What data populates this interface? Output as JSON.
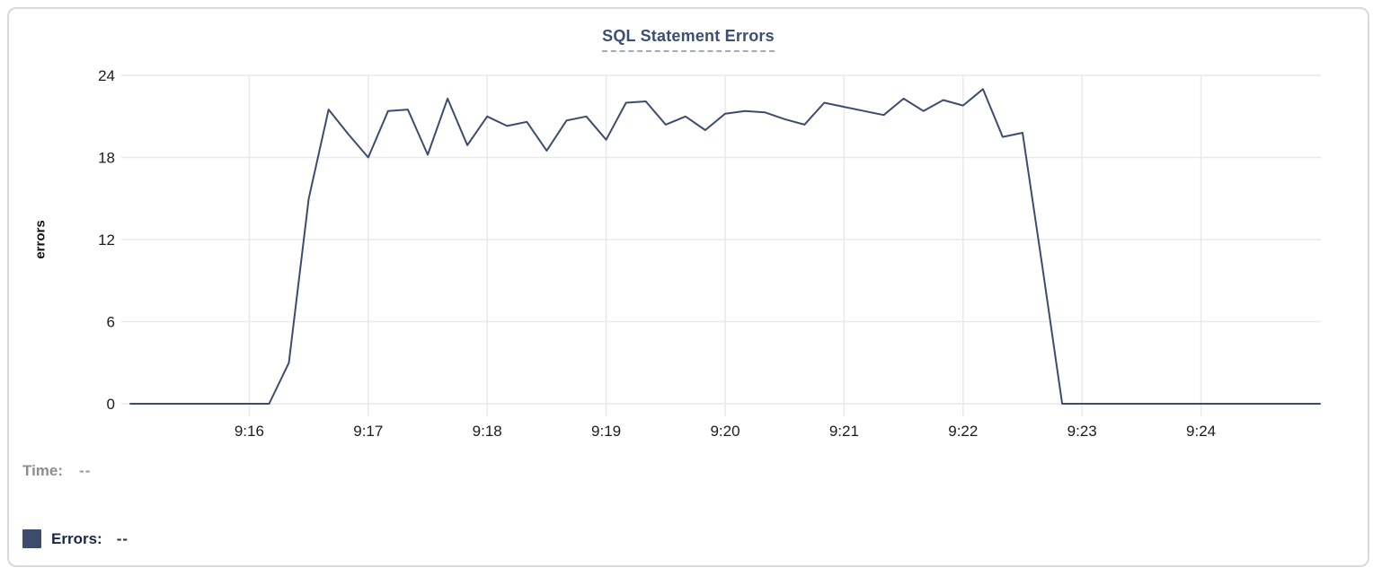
{
  "card": {
    "title": "SQL Statement Errors"
  },
  "tooltip_legend": {
    "time_label": "Time:",
    "time_value": "--",
    "errors_label": "Errors:",
    "errors_value": "--"
  },
  "colors": {
    "series_line": "#3d4c6d",
    "legend_swatch": "#3d4c6d",
    "title": "#3b4f71",
    "title_underline": "#9fabc4",
    "grid": "#e9e9e9",
    "axis_text": "#1c1c1c",
    "muted_text": "#8d8d8d",
    "legend_text": "#1a2847",
    "card_border": "#d9d9d9"
  },
  "chart_data": {
    "type": "line",
    "title": "SQL Statement Errors",
    "xlabel": "",
    "ylabel": "errors",
    "x_start": "9:15:00",
    "x_end": "9:25:00",
    "sample_interval_seconds": 10,
    "x_seconds": [
      0,
      10,
      20,
      30,
      40,
      50,
      60,
      70,
      80,
      90,
      100,
      110,
      120,
      130,
      140,
      150,
      160,
      170,
      180,
      190,
      200,
      210,
      220,
      230,
      240,
      250,
      260,
      270,
      280,
      290,
      300,
      310,
      320,
      330,
      340,
      350,
      360,
      370,
      380,
      390,
      400,
      410,
      420,
      430,
      440,
      450,
      460,
      470,
      480,
      490,
      500,
      510,
      520,
      530,
      540,
      550,
      560,
      570,
      580,
      590,
      600
    ],
    "x_tick_seconds": [
      60,
      120,
      180,
      240,
      300,
      360,
      420,
      480,
      540
    ],
    "x_tick_labels": [
      "9:16",
      "9:17",
      "9:18",
      "9:19",
      "9:20",
      "9:21",
      "9:22",
      "9:23",
      "9:24"
    ],
    "ylim": [
      0,
      24
    ],
    "y_ticks": [
      0,
      6,
      12,
      18,
      24
    ],
    "grid": true,
    "legend_position": "bottom-left",
    "series": [
      {
        "name": "Errors",
        "color": "#3d4c6d",
        "values": [
          0,
          0,
          0,
          0,
          0,
          0,
          0,
          0,
          3,
          15,
          21.5,
          19.7,
          18,
          21.4,
          21.5,
          18.2,
          22.3,
          18.9,
          21,
          20.3,
          20.6,
          18.5,
          20.7,
          21,
          19.3,
          22,
          22.1,
          20.4,
          21,
          20,
          21.2,
          21.4,
          21.3,
          20.8,
          20.4,
          22,
          21.7,
          21.4,
          21.1,
          22.3,
          21.4,
          22.2,
          21.8,
          23,
          19.5,
          19.8,
          10,
          0,
          0,
          0,
          0,
          0,
          0,
          0,
          0,
          0,
          0,
          0,
          0,
          0,
          0
        ]
      }
    ]
  }
}
